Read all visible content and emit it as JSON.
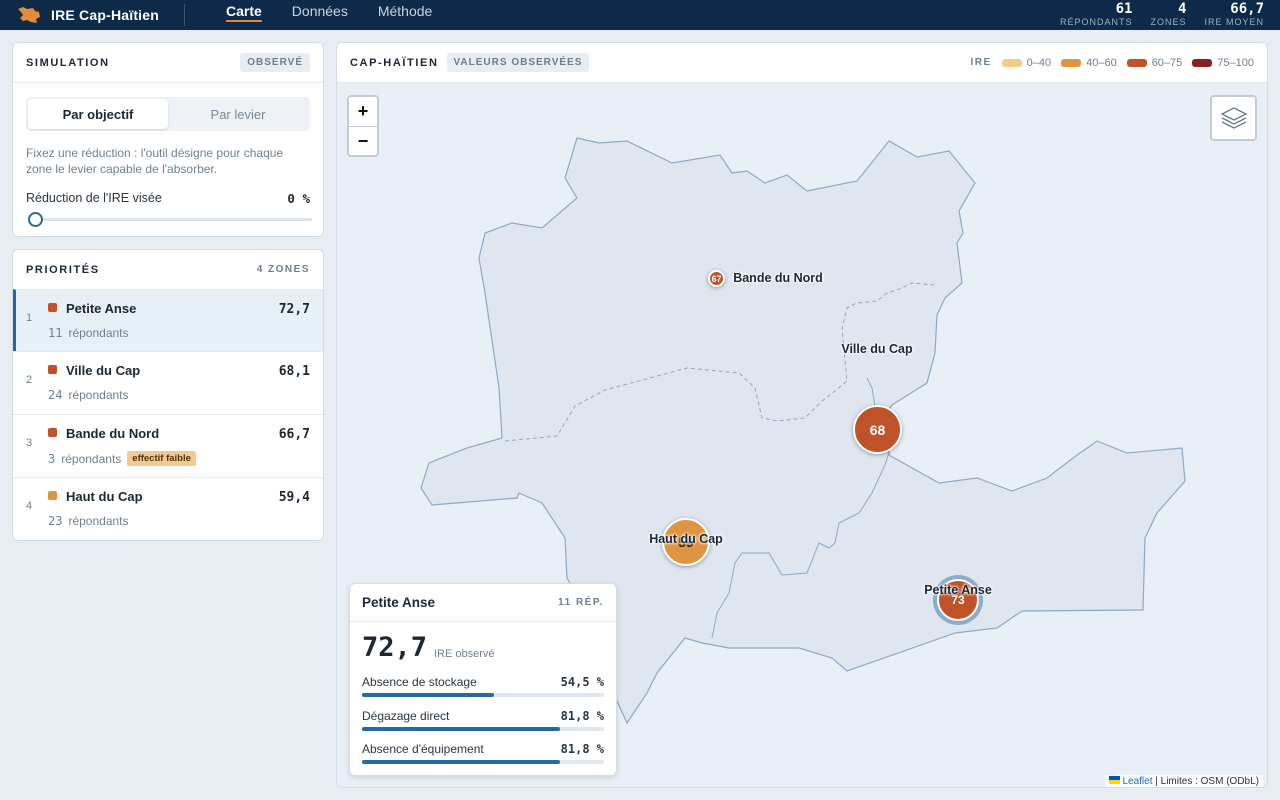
{
  "app": {
    "title": "IRE Cap-Haïtien"
  },
  "nav": {
    "items": [
      "Carte",
      "Données",
      "Méthode"
    ],
    "active": 0
  },
  "stats": [
    {
      "value": "61",
      "label": "RÉPONDANTS"
    },
    {
      "value": "4",
      "label": "ZONES"
    },
    {
      "value": "66,7",
      "label": "IRE MOYEN"
    }
  ],
  "simulation": {
    "title": "SIMULATION",
    "badge": "OBSERVÉ",
    "modes": [
      "Par objectif",
      "Par levier"
    ],
    "active_mode": 0,
    "description": "Fixez une réduction : l'outil désigne pour chaque zone le levier capable de l'absorber.",
    "slider_label": "Réduction de l'IRE visée",
    "slider_value_text": "0 %",
    "slider_fraction": 0
  },
  "priorities": {
    "title": "PRIORITÉS",
    "count": "4 ZONES",
    "respondents_word": "répondants",
    "items": [
      {
        "rank": "1",
        "name": "Petite Anse",
        "score": "72,7",
        "respondents": "11",
        "color": "#c0522a",
        "badge": ""
      },
      {
        "rank": "2",
        "name": "Ville du Cap",
        "score": "68,1",
        "respondents": "24",
        "color": "#c0522a",
        "badge": ""
      },
      {
        "rank": "3",
        "name": "Bande du Nord",
        "score": "66,7",
        "respondents": "3",
        "color": "#c0522a",
        "badge": "effectif faible"
      },
      {
        "rank": "4",
        "name": "Haut du Cap",
        "score": "59,4",
        "respondents": "23",
        "color": "#df9442",
        "badge": ""
      }
    ],
    "selected": 0
  },
  "map": {
    "title": "CAP-HAÏTIEN",
    "badge": "VALEURS OBSERVÉES",
    "legend_title": "IRE",
    "legend": [
      {
        "label": "0–40",
        "color": "#f0cb8e"
      },
      {
        "label": "40–60",
        "color": "#df9442"
      },
      {
        "label": "60–75",
        "color": "#c0522a"
      },
      {
        "label": "75–100",
        "color": "#8c1f1f"
      }
    ],
    "zoom_in": "+",
    "zoom_out": "−",
    "markers": [
      {
        "name": "Bande du Nord",
        "value": "67"
      },
      {
        "name": "Ville du Cap",
        "value": "68"
      },
      {
        "name": "Haut du Cap",
        "value": "59"
      },
      {
        "name": "Petite Anse",
        "value": "73"
      }
    ],
    "attribution": {
      "link": "Leaflet",
      "text": " | Limites : OSM (ODbL)"
    }
  },
  "info": {
    "name": "Petite Anse",
    "respondents": "11 RÉP.",
    "value": "72,7",
    "value_label": "IRE observé",
    "metrics": [
      {
        "label": "Absence de stockage",
        "value": "54,5 %",
        "fraction": 0.545
      },
      {
        "label": "Dégazage direct",
        "value": "81,8 %",
        "fraction": 0.818
      },
      {
        "label": "Absence d'équipement",
        "value": "81,8 %",
        "fraction": 0.818
      }
    ]
  }
}
